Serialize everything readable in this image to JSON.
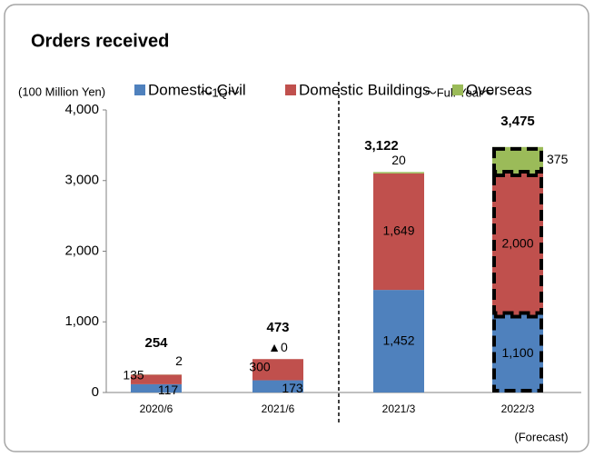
{
  "chart_data": {
    "type": "stacked_bar",
    "title": "Orders received",
    "y_axis_label": "(100 Million Yen)",
    "annotations": [
      "～1Q～",
      "～Full Year～",
      "(Forecast)"
    ],
    "categories": [
      "2020/6",
      "2021/6",
      "2021/3",
      "2022/3"
    ],
    "series": [
      {
        "name": "Domestic Civil",
        "color": "#4f81bd",
        "values": [
          117,
          173,
          1452,
          1100
        ],
        "value_labels": [
          "117",
          "173",
          "1,452",
          "1,100"
        ]
      },
      {
        "name": "Domestic Buildings",
        "color": "#c0504d",
        "values": [
          135,
          300,
          1649,
          2000
        ],
        "value_labels": [
          "135",
          "300",
          "1,649",
          "2,000"
        ]
      },
      {
        "name": "Overseas",
        "color": "#9bbb59",
        "values": [
          2,
          0,
          20,
          375
        ],
        "value_labels": [
          "2",
          "▲0",
          "20",
          "375"
        ]
      }
    ],
    "totals": [
      254,
      473,
      3122,
      3475
    ],
    "total_labels": [
      "254",
      "473",
      "3,122",
      "3,475"
    ],
    "ylim": [
      0,
      4000
    ],
    "yticks": [
      0,
      {
        "value": 1000,
        "label": "1,000"
      },
      {
        "value": 2000,
        "label": "2,000"
      },
      {
        "value": 3000,
        "label": "3,000"
      },
      {
        "value": 4000,
        "label": "4,000"
      }
    ],
    "legend": "top"
  }
}
